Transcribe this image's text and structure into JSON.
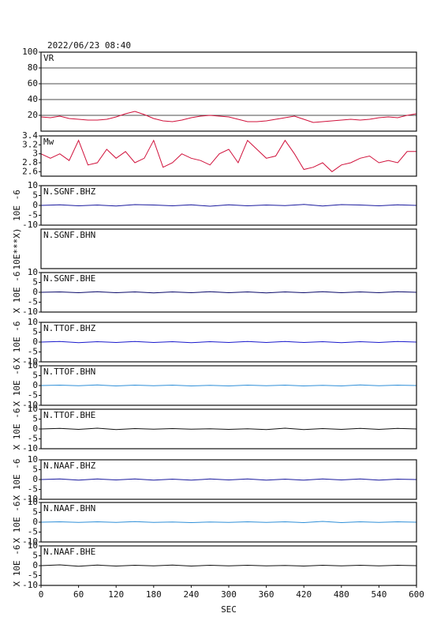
{
  "title": "2022/06/23 08:40",
  "chart_data": [
    {
      "type": "line",
      "label": "VR",
      "ylim": [
        0,
        100
      ],
      "yticks": [
        20,
        40,
        60,
        80,
        100
      ],
      "grid": true,
      "xlim": [
        0,
        600
      ],
      "x": [
        0,
        15,
        30,
        45,
        60,
        75,
        90,
        105,
        120,
        135,
        150,
        165,
        180,
        195,
        210,
        225,
        240,
        255,
        270,
        285,
        300,
        315,
        330,
        345,
        360,
        375,
        390,
        405,
        420,
        435,
        450,
        465,
        480,
        495,
        510,
        525,
        540,
        555,
        570,
        585,
        600
      ],
      "series": [
        {
          "color": "#d0103a",
          "values": [
            18,
            17,
            19,
            16,
            15,
            14,
            14,
            15,
            18,
            22,
            25,
            21,
            16,
            13,
            12,
            14,
            17,
            19,
            20,
            19,
            18,
            15,
            12,
            12,
            13,
            15,
            17,
            19,
            15,
            11,
            12,
            13,
            14,
            15,
            14,
            15,
            17,
            18,
            17,
            20,
            22
          ]
        }
      ]
    },
    {
      "type": "line",
      "label": "Mw",
      "ylim": [
        2.5,
        3.4
      ],
      "yticks": [
        2.6,
        2.8,
        3.0,
        3.2,
        3.4
      ],
      "xlim": [
        0,
        600
      ],
      "x": [
        0,
        15,
        30,
        45,
        60,
        75,
        90,
        105,
        120,
        135,
        150,
        165,
        180,
        195,
        210,
        225,
        240,
        255,
        270,
        285,
        300,
        315,
        330,
        345,
        360,
        375,
        390,
        405,
        420,
        435,
        450,
        465,
        480,
        495,
        510,
        525,
        540,
        555,
        570,
        585,
        600
      ],
      "series": [
        {
          "color": "#d0103a",
          "values": [
            3.0,
            2.9,
            3.0,
            2.85,
            3.3,
            2.75,
            2.8,
            3.1,
            2.9,
            3.05,
            2.8,
            2.9,
            3.3,
            2.7,
            2.8,
            3.0,
            2.9,
            2.85,
            2.75,
            3.0,
            3.1,
            2.8,
            3.3,
            3.1,
            2.9,
            2.95,
            3.3,
            3.0,
            2.65,
            2.7,
            2.8,
            2.6,
            2.75,
            2.8,
            2.9,
            2.95,
            2.8,
            2.85,
            2.8,
            3.05,
            3.05
          ]
        }
      ]
    },
    {
      "type": "line",
      "label": "N.SGNF.BHZ",
      "ylabel": "10E -6",
      "ylim": [
        -10,
        10
      ],
      "yticks": [
        -10,
        -5,
        0,
        5,
        10
      ],
      "xlim": [
        0,
        600
      ],
      "x": [
        0,
        30,
        60,
        90,
        120,
        150,
        180,
        210,
        240,
        270,
        300,
        330,
        360,
        390,
        420,
        450,
        480,
        510,
        540,
        570,
        600
      ],
      "series": [
        {
          "color": "#1a1a9e",
          "values": [
            0,
            0.3,
            -0.2,
            0.2,
            -0.3,
            0.4,
            0.2,
            -0.2,
            0.3,
            -0.4,
            0.3,
            -0.2,
            0.2,
            -0.1,
            0.5,
            -0.3,
            0.4,
            0.2,
            -0.2,
            0.3,
            0
          ]
        }
      ]
    },
    {
      "type": "line",
      "label": "N.SGNF.BHN",
      "ylabel": "10E***X)"
    },
    {
      "type": "line",
      "label": "N.SGNF.BHE",
      "ylabel": "X 10E -6",
      "ylim": [
        -10,
        10
      ],
      "yticks": [
        -10,
        -5,
        0,
        5,
        10
      ],
      "xlim": [
        0,
        600
      ],
      "x": [
        0,
        30,
        60,
        90,
        120,
        150,
        180,
        210,
        240,
        270,
        300,
        330,
        360,
        390,
        420,
        450,
        480,
        510,
        540,
        570,
        600
      ],
      "series": [
        {
          "color": "#0a0a6a",
          "values": [
            0,
            0.2,
            -0.2,
            0.3,
            -0.2,
            0.2,
            -0.3,
            0.2,
            -0.2,
            0.3,
            -0.2,
            0.2,
            -0.3,
            0.2,
            -0.2,
            0.3,
            -0.2,
            0.2,
            -0.2,
            0.3,
            0
          ]
        }
      ]
    },
    {
      "type": "line",
      "label": "N.TTOF.BHZ",
      "ylabel": "X 10E -6",
      "ylim": [
        -10,
        10
      ],
      "yticks": [
        -10,
        -5,
        0,
        5,
        10
      ],
      "xlim": [
        0,
        600
      ],
      "x": [
        0,
        30,
        60,
        90,
        120,
        150,
        180,
        210,
        240,
        270,
        300,
        330,
        360,
        390,
        420,
        450,
        480,
        510,
        540,
        570,
        600
      ],
      "series": [
        {
          "color": "#1a1acc",
          "values": [
            0,
            0.3,
            -0.3,
            0.2,
            -0.2,
            0.3,
            -0.2,
            0.2,
            -0.3,
            0.2,
            -0.2,
            0.3,
            -0.2,
            0.3,
            -0.2,
            0.2,
            -0.3,
            0.2,
            -0.2,
            0.3,
            0
          ]
        }
      ]
    },
    {
      "type": "line",
      "label": "N.TTOF.BHN",
      "ylabel": "X 10E -6",
      "ylim": [
        -10,
        10
      ],
      "yticks": [
        -10,
        -5,
        0,
        5,
        10
      ],
      "xlim": [
        0,
        600
      ],
      "x": [
        0,
        30,
        60,
        90,
        120,
        150,
        180,
        210,
        240,
        270,
        300,
        330,
        360,
        390,
        420,
        450,
        480,
        510,
        540,
        570,
        600
      ],
      "series": [
        {
          "color": "#2f8fd8",
          "values": [
            0,
            0.2,
            -0.1,
            0.3,
            -0.2,
            0.2,
            -0.1,
            0.2,
            -0.2,
            0.1,
            -0.2,
            0.2,
            -0.1,
            0.2,
            -0.2,
            0.1,
            -0.2,
            0.3,
            -0.1,
            0.2,
            0
          ]
        }
      ]
    },
    {
      "type": "line",
      "label": "N.TTOF.BHE",
      "ylabel": "X 10E -6",
      "ylim": [
        -10,
        10
      ],
      "yticks": [
        -10,
        -5,
        0,
        5,
        10
      ],
      "xlim": [
        0,
        600
      ],
      "x": [
        0,
        30,
        60,
        90,
        120,
        150,
        180,
        210,
        240,
        270,
        300,
        330,
        360,
        390,
        420,
        450,
        480,
        510,
        540,
        570,
        600
      ],
      "series": [
        {
          "color": "#111111",
          "values": [
            0,
            0.3,
            -0.2,
            0.4,
            -0.3,
            0.2,
            -0.1,
            0.2,
            -0.1,
            0.1,
            -0.2,
            0.1,
            -0.3,
            0.4,
            -0.3,
            0.2,
            -0.2,
            0.3,
            -0.2,
            0.3,
            0
          ]
        }
      ]
    },
    {
      "type": "line",
      "label": "N.NAAF.BHZ",
      "ylabel": "X 10E -6",
      "ylim": [
        -10,
        10
      ],
      "yticks": [
        -10,
        -5,
        0,
        5,
        10
      ],
      "xlim": [
        0,
        600
      ],
      "x": [
        0,
        30,
        60,
        90,
        120,
        150,
        180,
        210,
        240,
        270,
        300,
        330,
        360,
        390,
        420,
        450,
        480,
        510,
        540,
        570,
        600
      ],
      "series": [
        {
          "color": "#1a1a9e",
          "values": [
            0,
            0.3,
            -0.3,
            0.3,
            -0.2,
            0.3,
            -0.3,
            0.2,
            -0.3,
            0.3,
            -0.2,
            0.3,
            -0.3,
            0.2,
            -0.3,
            0.3,
            -0.2,
            0.3,
            -0.3,
            0.2,
            0
          ]
        }
      ]
    },
    {
      "type": "line",
      "label": "N.NAAF.BHN",
      "ylabel": "X 10E -6",
      "ylim": [
        -10,
        10
      ],
      "yticks": [
        -10,
        -5,
        0,
        5,
        10
      ],
      "xlim": [
        0,
        600
      ],
      "x": [
        0,
        30,
        60,
        90,
        120,
        150,
        180,
        210,
        240,
        270,
        300,
        330,
        360,
        390,
        420,
        450,
        480,
        510,
        540,
        570,
        600
      ],
      "series": [
        {
          "color": "#2f8fd8",
          "values": [
            0,
            0.2,
            -0.1,
            0.2,
            -0.1,
            0.3,
            -0.1,
            0.1,
            -0.2,
            0.1,
            -0.1,
            0.2,
            -0.1,
            0.2,
            -0.2,
            0.4,
            -0.2,
            0.2,
            -0.1,
            0.2,
            0
          ]
        }
      ]
    },
    {
      "type": "line",
      "label": "N.NAAF.BHE",
      "ylabel": "X 10E -6",
      "ylim": [
        -10,
        10
      ],
      "yticks": [
        -10,
        -5,
        0,
        5,
        10
      ],
      "xlim": [
        0,
        600
      ],
      "xlabel": "SEC",
      "xticks": [
        0,
        60,
        120,
        180,
        240,
        300,
        360,
        420,
        480,
        540,
        600
      ],
      "x": [
        0,
        30,
        60,
        90,
        120,
        150,
        180,
        210,
        240,
        270,
        300,
        330,
        360,
        390,
        420,
        450,
        480,
        510,
        540,
        570,
        600
      ],
      "series": [
        {
          "color": "#111111",
          "values": [
            0,
            0.4,
            -0.3,
            0.3,
            -0.2,
            0.2,
            -0.1,
            0.3,
            -0.2,
            0.2,
            -0.1,
            0.2,
            -0.1,
            0.1,
            -0.2,
            0.2,
            -0.1,
            0.2,
            -0.1,
            0.2,
            0
          ]
        }
      ]
    }
  ]
}
